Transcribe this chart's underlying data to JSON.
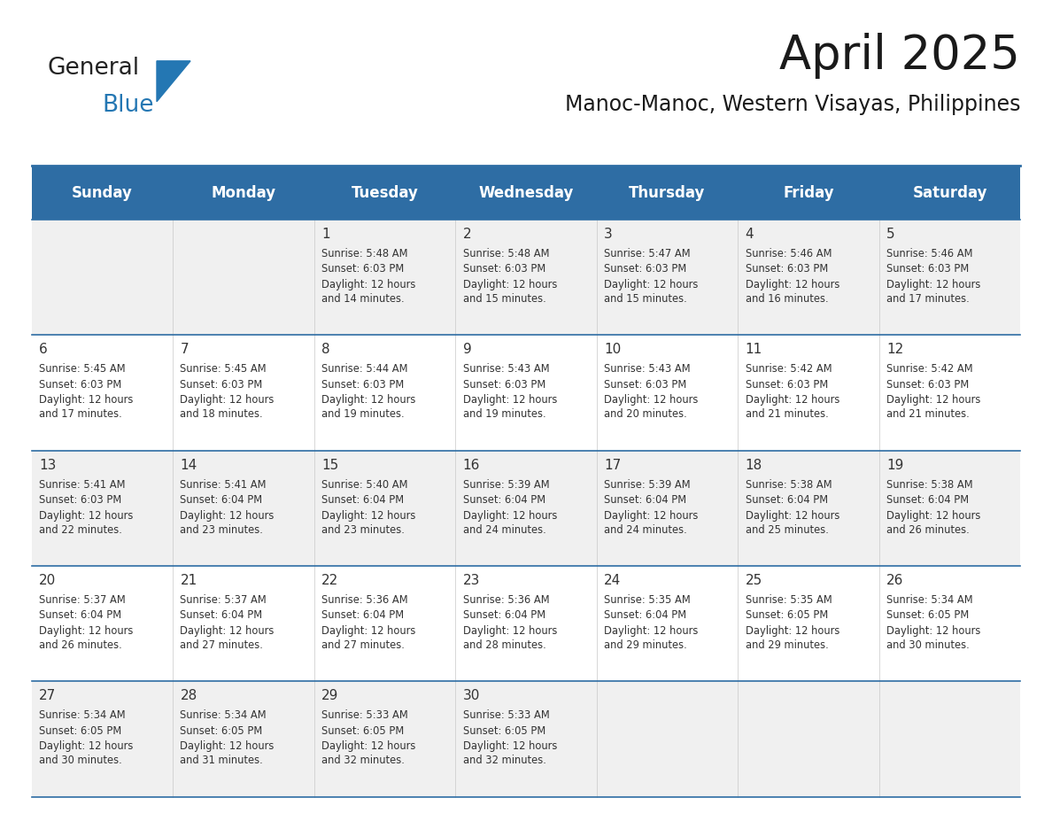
{
  "title": "April 2025",
  "subtitle": "Manoc-Manoc, Western Visayas, Philippines",
  "header_bg": "#2E6DA4",
  "header_text": "#FFFFFF",
  "row_bg_odd": "#F0F0F0",
  "row_bg_even": "#FFFFFF",
  "cell_text": "#333333",
  "days_of_week": [
    "Sunday",
    "Monday",
    "Tuesday",
    "Wednesday",
    "Thursday",
    "Friday",
    "Saturday"
  ],
  "calendar": [
    [
      {
        "day": "",
        "sunrise": "",
        "sunset": "",
        "daylight": ""
      },
      {
        "day": "",
        "sunrise": "",
        "sunset": "",
        "daylight": ""
      },
      {
        "day": "1",
        "sunrise": "5:48 AM",
        "sunset": "6:03 PM",
        "daylight": "12 hours\nand 14 minutes."
      },
      {
        "day": "2",
        "sunrise": "5:48 AM",
        "sunset": "6:03 PM",
        "daylight": "12 hours\nand 15 minutes."
      },
      {
        "day": "3",
        "sunrise": "5:47 AM",
        "sunset": "6:03 PM",
        "daylight": "12 hours\nand 15 minutes."
      },
      {
        "day": "4",
        "sunrise": "5:46 AM",
        "sunset": "6:03 PM",
        "daylight": "12 hours\nand 16 minutes."
      },
      {
        "day": "5",
        "sunrise": "5:46 AM",
        "sunset": "6:03 PM",
        "daylight": "12 hours\nand 17 minutes."
      }
    ],
    [
      {
        "day": "6",
        "sunrise": "5:45 AM",
        "sunset": "6:03 PM",
        "daylight": "12 hours\nand 17 minutes."
      },
      {
        "day": "7",
        "sunrise": "5:45 AM",
        "sunset": "6:03 PM",
        "daylight": "12 hours\nand 18 minutes."
      },
      {
        "day": "8",
        "sunrise": "5:44 AM",
        "sunset": "6:03 PM",
        "daylight": "12 hours\nand 19 minutes."
      },
      {
        "day": "9",
        "sunrise": "5:43 AM",
        "sunset": "6:03 PM",
        "daylight": "12 hours\nand 19 minutes."
      },
      {
        "day": "10",
        "sunrise": "5:43 AM",
        "sunset": "6:03 PM",
        "daylight": "12 hours\nand 20 minutes."
      },
      {
        "day": "11",
        "sunrise": "5:42 AM",
        "sunset": "6:03 PM",
        "daylight": "12 hours\nand 21 minutes."
      },
      {
        "day": "12",
        "sunrise": "5:42 AM",
        "sunset": "6:03 PM",
        "daylight": "12 hours\nand 21 minutes."
      }
    ],
    [
      {
        "day": "13",
        "sunrise": "5:41 AM",
        "sunset": "6:03 PM",
        "daylight": "12 hours\nand 22 minutes."
      },
      {
        "day": "14",
        "sunrise": "5:41 AM",
        "sunset": "6:04 PM",
        "daylight": "12 hours\nand 23 minutes."
      },
      {
        "day": "15",
        "sunrise": "5:40 AM",
        "sunset": "6:04 PM",
        "daylight": "12 hours\nand 23 minutes."
      },
      {
        "day": "16",
        "sunrise": "5:39 AM",
        "sunset": "6:04 PM",
        "daylight": "12 hours\nand 24 minutes."
      },
      {
        "day": "17",
        "sunrise": "5:39 AM",
        "sunset": "6:04 PM",
        "daylight": "12 hours\nand 24 minutes."
      },
      {
        "day": "18",
        "sunrise": "5:38 AM",
        "sunset": "6:04 PM",
        "daylight": "12 hours\nand 25 minutes."
      },
      {
        "day": "19",
        "sunrise": "5:38 AM",
        "sunset": "6:04 PM",
        "daylight": "12 hours\nand 26 minutes."
      }
    ],
    [
      {
        "day": "20",
        "sunrise": "5:37 AM",
        "sunset": "6:04 PM",
        "daylight": "12 hours\nand 26 minutes."
      },
      {
        "day": "21",
        "sunrise": "5:37 AM",
        "sunset": "6:04 PM",
        "daylight": "12 hours\nand 27 minutes."
      },
      {
        "day": "22",
        "sunrise": "5:36 AM",
        "sunset": "6:04 PM",
        "daylight": "12 hours\nand 27 minutes."
      },
      {
        "day": "23",
        "sunrise": "5:36 AM",
        "sunset": "6:04 PM",
        "daylight": "12 hours\nand 28 minutes."
      },
      {
        "day": "24",
        "sunrise": "5:35 AM",
        "sunset": "6:04 PM",
        "daylight": "12 hours\nand 29 minutes."
      },
      {
        "day": "25",
        "sunrise": "5:35 AM",
        "sunset": "6:05 PM",
        "daylight": "12 hours\nand 29 minutes."
      },
      {
        "day": "26",
        "sunrise": "5:34 AM",
        "sunset": "6:05 PM",
        "daylight": "12 hours\nand 30 minutes."
      }
    ],
    [
      {
        "day": "27",
        "sunrise": "5:34 AM",
        "sunset": "6:05 PM",
        "daylight": "12 hours\nand 30 minutes."
      },
      {
        "day": "28",
        "sunrise": "5:34 AM",
        "sunset": "6:05 PM",
        "daylight": "12 hours\nand 31 minutes."
      },
      {
        "day": "29",
        "sunrise": "5:33 AM",
        "sunset": "6:05 PM",
        "daylight": "12 hours\nand 32 minutes."
      },
      {
        "day": "30",
        "sunrise": "5:33 AM",
        "sunset": "6:05 PM",
        "daylight": "12 hours\nand 32 minutes."
      },
      {
        "day": "",
        "sunrise": "",
        "sunset": "",
        "daylight": ""
      },
      {
        "day": "",
        "sunrise": "",
        "sunset": "",
        "daylight": ""
      },
      {
        "day": "",
        "sunrise": "",
        "sunset": "",
        "daylight": ""
      }
    ]
  ],
  "logo_color1": "#222222",
  "logo_color2": "#2477B3",
  "logo_triangle_color": "#2477B3",
  "figsize": [
    11.88,
    9.18
  ],
  "dpi": 100
}
